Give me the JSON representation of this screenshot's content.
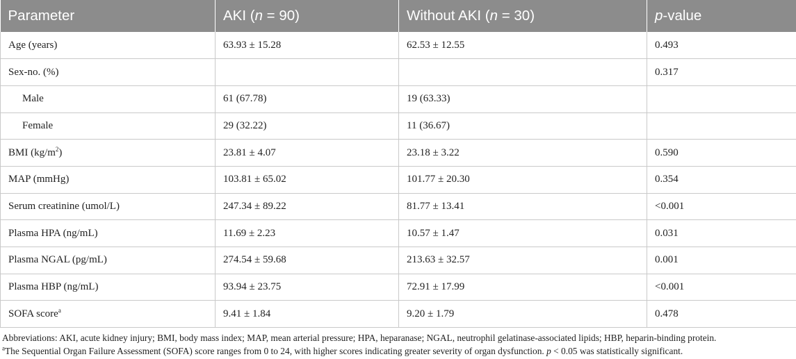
{
  "table": {
    "headers": [
      {
        "text": "Parameter"
      },
      {
        "pre": "AKI (",
        "italic": "n",
        "post": " = 90)"
      },
      {
        "pre": "Without AKI (",
        "italic": "n",
        "post": " = 30)"
      },
      {
        "pre": "",
        "italic": "p",
        "post": "-value"
      }
    ],
    "rows": [
      {
        "parameter": "Age (years)",
        "aki": "63.93 ± 15.28",
        "without_aki": "62.53 ± 12.55",
        "p_value": "0.493"
      },
      {
        "parameter": "Sex-no. (%)",
        "aki": "",
        "without_aki": "",
        "p_value": "0.317"
      },
      {
        "parameter": "Male",
        "aki": "61 (67.78)",
        "without_aki": "19 (63.33)",
        "p_value": "",
        "indent": true
      },
      {
        "parameter": "Female",
        "aki": "29 (32.22)",
        "without_aki": "11 (36.67)",
        "p_value": "",
        "indent": true
      },
      {
        "parameter": "BMI (kg/m",
        "sup": "2",
        "parameter_post": ")",
        "aki": "23.81 ± 4.07",
        "without_aki": "23.18 ± 3.22",
        "p_value": "0.590"
      },
      {
        "parameter": "MAP (mmHg)",
        "aki": "103.81 ± 65.02",
        "without_aki": "101.77 ± 20.30",
        "p_value": "0.354"
      },
      {
        "parameter": "Serum creatinine (umol/L)",
        "aki": "247.34 ± 89.22",
        "without_aki": "81.77 ± 13.41",
        "p_value": "<0.001"
      },
      {
        "parameter": "Plasma HPA (ng/mL)",
        "aki": "11.69 ± 2.23",
        "without_aki": "10.57 ± 1.47",
        "p_value": "0.031"
      },
      {
        "parameter": "Plasma NGAL (pg/mL)",
        "aki": "274.54 ± 59.68",
        "without_aki": "213.63 ± 32.57",
        "p_value": "0.001"
      },
      {
        "parameter": "Plasma HBP (ng/mL)",
        "aki": "93.94 ± 23.75",
        "without_aki": "72.91 ± 17.99",
        "p_value": "<0.001"
      },
      {
        "parameter": "SOFA score",
        "sup": "a",
        "parameter_post": "",
        "aki": "9.41 ± 1.84",
        "without_aki": "9.20 ± 1.79",
        "p_value": "0.478"
      }
    ]
  },
  "footnotes": {
    "abbreviations": "Abbreviations: AKI, acute kidney injury; BMI, body mass index; MAP, mean arterial pressure; HPA, heparanase; NGAL, neutrophil gelatinase-associated lipids; HBP, heparin-binding protein.",
    "sofa_marker": "a",
    "sofa_pre": "The Sequential Organ Failure Assessment (SOFA) score ranges from 0 to 24, with higher scores indicating greater severity of organ dysfunction. ",
    "sofa_italic": "p",
    "sofa_post": " < 0.05 was statistically significant."
  },
  "colors": {
    "header_bg": "#8c8c8c",
    "header_text": "#ffffff",
    "grid": "#c9c9c9",
    "text": "#222222"
  }
}
